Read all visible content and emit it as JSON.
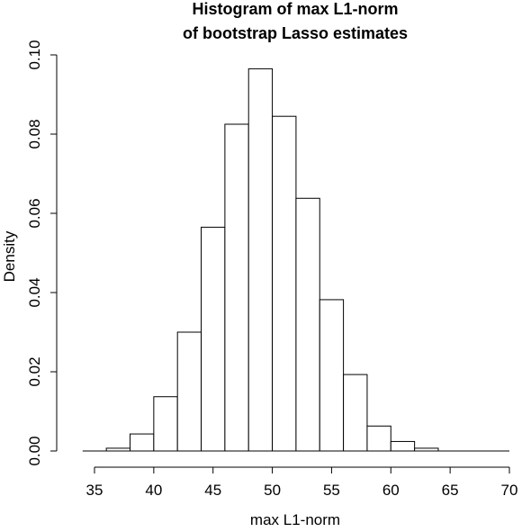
{
  "chart_data": {
    "type": "bar",
    "title_lines": [
      "Histogram of max L1-norm",
      "of bootstrap Lasso estimates"
    ],
    "xlabel": "max L1-norm",
    "ylabel": "Density",
    "xlim": [
      35,
      70
    ],
    "ylim": [
      0,
      0.1
    ],
    "bin_width": 2,
    "bins": [
      {
        "x_start": 34,
        "x_end": 36,
        "density": 0.0
      },
      {
        "x_start": 36,
        "x_end": 38,
        "density": 0.0007
      },
      {
        "x_start": 38,
        "x_end": 40,
        "density": 0.0043
      },
      {
        "x_start": 40,
        "x_end": 42,
        "density": 0.0137
      },
      {
        "x_start": 42,
        "x_end": 44,
        "density": 0.03
      },
      {
        "x_start": 44,
        "x_end": 46,
        "density": 0.0565
      },
      {
        "x_start": 46,
        "x_end": 48,
        "density": 0.0825
      },
      {
        "x_start": 48,
        "x_end": 50,
        "density": 0.0965
      },
      {
        "x_start": 50,
        "x_end": 52,
        "density": 0.0845
      },
      {
        "x_start": 52,
        "x_end": 54,
        "density": 0.0638
      },
      {
        "x_start": 54,
        "x_end": 56,
        "density": 0.0382
      },
      {
        "x_start": 56,
        "x_end": 58,
        "density": 0.0193
      },
      {
        "x_start": 58,
        "x_end": 60,
        "density": 0.0063
      },
      {
        "x_start": 60,
        "x_end": 62,
        "density": 0.0024
      },
      {
        "x_start": 62,
        "x_end": 64,
        "density": 0.0007
      },
      {
        "x_start": 64,
        "x_end": 66,
        "density": 0.0
      },
      {
        "x_start": 66,
        "x_end": 68,
        "density": 0.0
      },
      {
        "x_start": 68,
        "x_end": 70,
        "density": 0.0
      }
    ],
    "x_ticks": [
      35,
      40,
      45,
      50,
      55,
      60,
      65,
      70
    ],
    "x_tick_labels": [
      "35",
      "40",
      "45",
      "50",
      "55",
      "60",
      "65",
      "70"
    ],
    "y_ticks": [
      0,
      0.02,
      0.04,
      0.06,
      0.08,
      0.1
    ],
    "y_tick_labels": [
      "0.00",
      "0.02",
      "0.04",
      "0.06",
      "0.08",
      "0.10"
    ],
    "grid": false,
    "colors": {
      "bar_fill": "#ffffff",
      "bar_stroke": "#000000",
      "axis": "#000000"
    }
  }
}
